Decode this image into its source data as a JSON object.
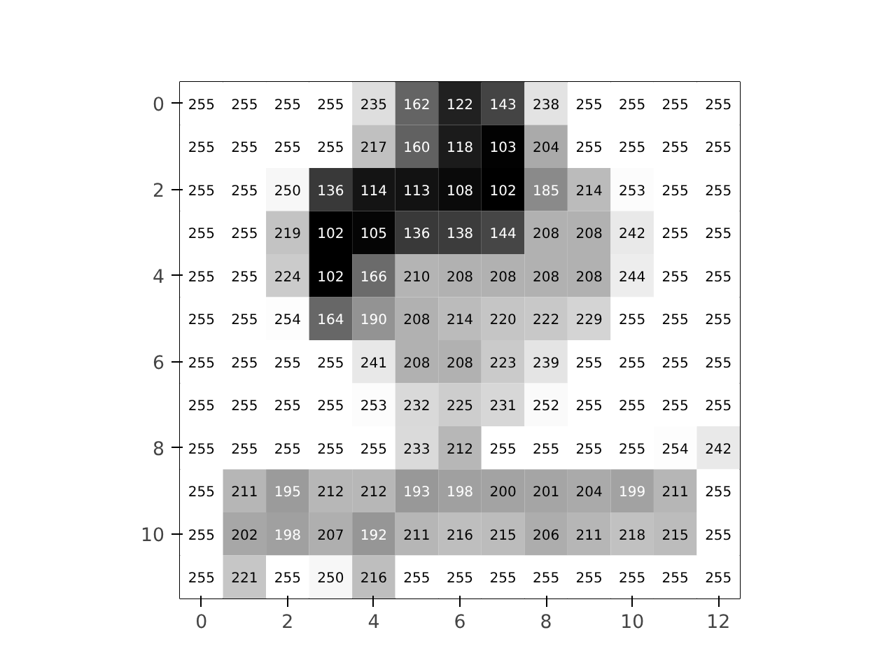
{
  "chart_data": {
    "type": "heatmap",
    "x": [
      0,
      1,
      2,
      3,
      4,
      5,
      6,
      7,
      8,
      9,
      10,
      11,
      12
    ],
    "y": [
      0,
      1,
      2,
      3,
      4,
      5,
      6,
      7,
      8,
      9,
      10,
      11
    ],
    "xlim": [
      -0.5,
      12.5
    ],
    "ylim": [
      11.5,
      -0.5
    ],
    "xticks": [
      0,
      2,
      4,
      6,
      8,
      10,
      12
    ],
    "yticks": [
      0,
      2,
      4,
      6,
      8,
      10
    ],
    "data_labels": true,
    "grid": false,
    "cells": [
      [
        255,
        255,
        255,
        255,
        235,
        162,
        122,
        143,
        238,
        255,
        255,
        255,
        255
      ],
      [
        255,
        255,
        255,
        255,
        217,
        160,
        118,
        103,
        204,
        255,
        255,
        255,
        255
      ],
      [
        255,
        255,
        250,
        136,
        114,
        113,
        108,
        102,
        185,
        214,
        253,
        255,
        255
      ],
      [
        255,
        255,
        219,
        102,
        105,
        136,
        138,
        144,
        208,
        208,
        242,
        255,
        255
      ],
      [
        255,
        255,
        224,
        102,
        166,
        210,
        208,
        208,
        208,
        208,
        244,
        255,
        255
      ],
      [
        255,
        255,
        254,
        164,
        190,
        208,
        214,
        220,
        222,
        229,
        255,
        255,
        255
      ],
      [
        255,
        255,
        255,
        255,
        241,
        208,
        208,
        223,
        239,
        255,
        255,
        255,
        255
      ],
      [
        255,
        255,
        255,
        255,
        253,
        232,
        225,
        231,
        252,
        255,
        255,
        255,
        255
      ],
      [
        255,
        255,
        255,
        255,
        255,
        233,
        212,
        255,
        255,
        255,
        255,
        254,
        242
      ],
      [
        255,
        211,
        195,
        212,
        212,
        193,
        198,
        200,
        201,
        204,
        199,
        211,
        255
      ],
      [
        255,
        202,
        198,
        207,
        192,
        211,
        216,
        215,
        206,
        211,
        218,
        215,
        255
      ],
      [
        255,
        221,
        255,
        250,
        216,
        255,
        255,
        255,
        255,
        255,
        255,
        255,
        255
      ]
    ]
  }
}
